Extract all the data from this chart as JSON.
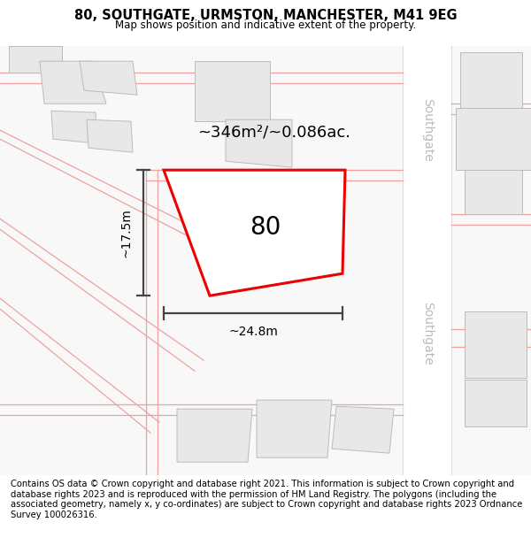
{
  "title": "80, SOUTHGATE, URMSTON, MANCHESTER, M41 9EG",
  "subtitle": "Map shows position and indicative extent of the property.",
  "footer": "Contains OS data © Crown copyright and database right 2021. This information is subject to Crown copyright and database rights 2023 and is reproduced with the permission of HM Land Registry. The polygons (including the associated geometry, namely x, y co-ordinates) are subject to Crown copyright and database rights 2023 Ordnance Survey 100026316.",
  "map_bg": "#f8f8f8",
  "plot_fill": "#ffffff",
  "plot_edge_color": "#ee0000",
  "plot_label": "80",
  "area_text": "~346m²/~0.086ac.",
  "dim_width": "~24.8m",
  "dim_height": "~17.5m",
  "street_label": "Southgate",
  "building_fill": "#e8e8e8",
  "building_edge": "#bbbbbb",
  "road_line_color": "#f0a0a0",
  "road_fill": "#ffffff",
  "road_edge": "#dddddd",
  "dim_line_color": "#444444",
  "street_text_color": "#bbbbbb",
  "footer_fontsize": 7.2,
  "title_fontsize": 10.5,
  "subtitle_fontsize": 8.5,
  "label_80_fontsize": 20,
  "area_fontsize": 13,
  "dim_fontsize": 10,
  "street_fontsize": 10
}
